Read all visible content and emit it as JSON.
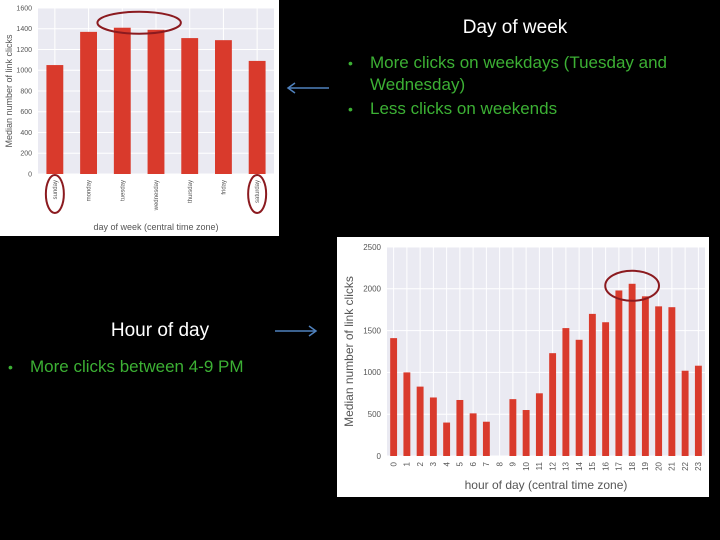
{
  "slide": {
    "day_heading": "Day of week",
    "day_bullets": [
      "More clicks on weekdays (Tuesday and Wednesday)",
      "Less clicks on weekends"
    ],
    "hour_heading": "Hour of day",
    "hour_bullets": [
      "More clicks between 4-9 PM"
    ],
    "bullet_glyph": "•"
  },
  "colors": {
    "bar": "#d93a2c",
    "highlight": "#8b1a1f",
    "bullet_text": "#3cb034",
    "arrow": "#4f81bd",
    "plot_bg": "#eaeaf2",
    "grid": "#ffffff"
  },
  "chart_data": [
    {
      "type": "bar",
      "categories": [
        "sunday",
        "monday",
        "tuesday",
        "wednesday",
        "thursday",
        "friday",
        "saturday"
      ],
      "values": [
        1050,
        1370,
        1410,
        1390,
        1310,
        1290,
        1090
      ],
      "xlabel": "day of week (central time zone)",
      "ylabel": "Median number of link clicks",
      "ylim": [
        0,
        1600
      ],
      "yticks": [
        0,
        200,
        400,
        600,
        800,
        1000,
        1200,
        1400,
        1600
      ],
      "grid": true,
      "highlighted_categories": [
        "tuesday",
        "wednesday"
      ],
      "circled_labels": [
        "sunday",
        "saturday"
      ]
    },
    {
      "type": "bar",
      "categories": [
        "0",
        "1",
        "2",
        "3",
        "4",
        "5",
        "6",
        "7",
        "8",
        "9",
        "10",
        "11",
        "12",
        "13",
        "14",
        "15",
        "16",
        "17",
        "18",
        "19",
        "20",
        "21",
        "22",
        "23"
      ],
      "values": [
        1410,
        1000,
        830,
        700,
        400,
        670,
        510,
        410,
        0,
        680,
        550,
        750,
        1230,
        1530,
        1390,
        1700,
        1600,
        1980,
        2060,
        1910,
        1790,
        1780,
        1020,
        1080
      ],
      "xlabel": "hour of day (central time zone)",
      "ylabel": "Median number of link clicks",
      "ylim": [
        0,
        2500
      ],
      "yticks": [
        0,
        500,
        1000,
        1500,
        2000,
        2500
      ],
      "grid": true,
      "highlighted_categories": [
        "17",
        "18",
        "19"
      ]
    }
  ]
}
